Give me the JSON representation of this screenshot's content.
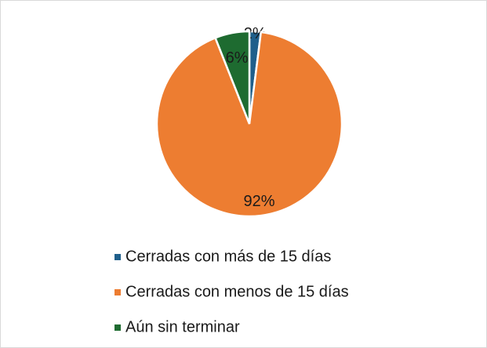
{
  "chart_data": {
    "type": "pie",
    "categories": [
      "Cerradas con más de 15 días",
      "Cerradas con menos de 15 días",
      "Aún sin terminar"
    ],
    "values": [
      2,
      92,
      6
    ],
    "value_labels": [
      "2%",
      "92%",
      "6%"
    ],
    "colors": [
      "#1f5f8b",
      "#ed7d31",
      "#1e6b30"
    ],
    "legend": "bottom"
  }
}
